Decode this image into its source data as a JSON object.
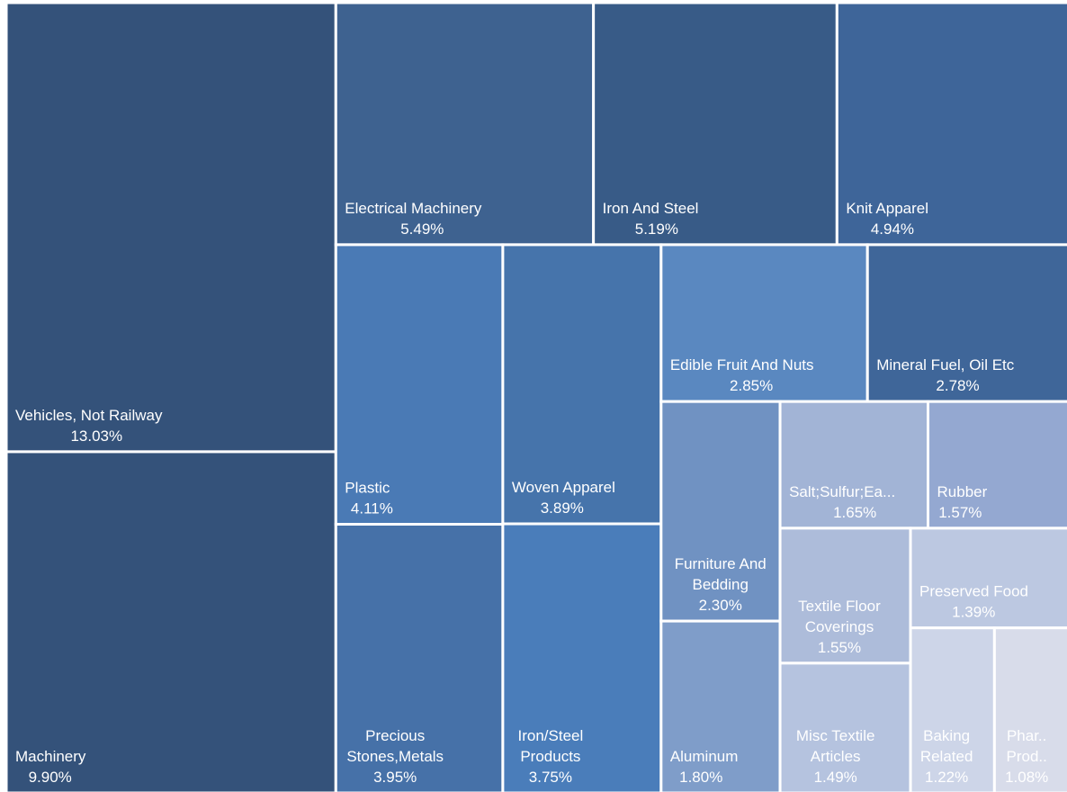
{
  "chart_data": {
    "type": "treemap",
    "labels": [
      "Vehicles, Not Railway",
      "Machinery",
      "Electrical Machinery",
      "Iron And Steel",
      "Knit Apparel",
      "Plastic",
      "Precious Stones,Metals",
      "Woven Apparel",
      "Iron/Steel Products",
      "Edible Fruit And Nuts",
      "Mineral Fuel, Oil Etc",
      "Furniture And Bedding",
      "Aluminum",
      "Salt;Sulfur;Ea...",
      "Rubber",
      "Textile Floor Coverings",
      "Misc Textile Articles",
      "Preserved Food",
      "Baking Related",
      "Phar.. Prod.."
    ],
    "values": [
      13.03,
      9.9,
      5.49,
      5.19,
      4.94,
      4.11,
      3.95,
      3.89,
      3.75,
      2.85,
      2.78,
      2.3,
      1.8,
      1.65,
      1.57,
      1.55,
      1.49,
      1.39,
      1.22,
      1.08
    ],
    "value_labels": [
      "13.03%",
      "9.90%",
      "5.49%",
      "5.19%",
      "4.94%",
      "4.11%",
      "3.95%",
      "3.89%",
      "3.75%",
      "2.85%",
      "2.78%",
      "2.30%",
      "1.80%",
      "1.65%",
      "1.57%",
      "1.55%",
      "1.49%",
      "1.39%",
      "1.22%",
      "1.08%"
    ],
    "colors": [
      "#34527a",
      "#34527a",
      "#3e6290",
      "#385b87",
      "#3e6599",
      "#4a7ab5",
      "#4671a8",
      "#4674ab",
      "#4a7dba",
      "#5a88c0",
      "#3f6699",
      "#7092c2",
      "#7f9dc9",
      "#a2b4d6",
      "#94a8d1",
      "#adbcda",
      "#b5c3df",
      "#bcc8e1",
      "#cdd5e8",
      "#d8dcea"
    ]
  }
}
